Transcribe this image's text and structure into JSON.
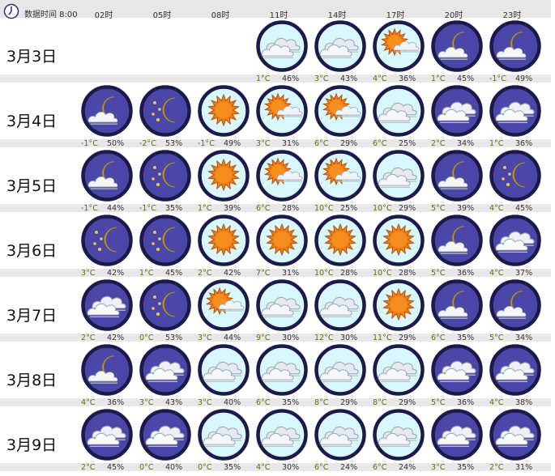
{
  "header": {
    "label": "数据时间 8:00",
    "hours": [
      "02时",
      "05时",
      "08时",
      "11时",
      "14时",
      "17时",
      "20时",
      "23时"
    ]
  },
  "colors": {
    "day_fill": "#d9f7ff",
    "night_fill": "#4a47a8",
    "ring": "#1c1a4a",
    "sun": "#f07d12",
    "moon": "#f1c13c",
    "temp_text": "#6b6b0f",
    "stripe": "#e7e7e7"
  },
  "days": [
    {
      "date": "3月3日",
      "slots": [
        null,
        null,
        null,
        {
          "icon": "cloudy-day",
          "temp": "1°C",
          "hum": "46%"
        },
        {
          "icon": "cloudy-day",
          "temp": "3°C",
          "hum": "43%"
        },
        {
          "icon": "sun-cloud",
          "temp": "4°C",
          "hum": "36%"
        },
        {
          "icon": "moon-cloud",
          "temp": "1°C",
          "hum": "45%"
        },
        {
          "icon": "moon-cloud",
          "temp": "-1°C",
          "hum": "49%"
        }
      ]
    },
    {
      "date": "3月4日",
      "slots": [
        {
          "icon": "moon-cloud",
          "temp": "-1°C",
          "hum": "50%"
        },
        {
          "icon": "moon-stars",
          "temp": "-2°C",
          "hum": "53%"
        },
        {
          "icon": "sun",
          "temp": "-1°C",
          "hum": "49%"
        },
        {
          "icon": "sun-cloud",
          "temp": "3°C",
          "hum": "31%"
        },
        {
          "icon": "sun-cloud",
          "temp": "6°C",
          "hum": "29%"
        },
        {
          "icon": "cloudy-day",
          "temp": "6°C",
          "hum": "25%"
        },
        {
          "icon": "cloudy-night",
          "temp": "2°C",
          "hum": "34%"
        },
        {
          "icon": "cloudy-night",
          "temp": "1°C",
          "hum": "36%"
        }
      ]
    },
    {
      "date": "3月5日",
      "slots": [
        {
          "icon": "moon-cloud",
          "temp": "-1°C",
          "hum": "44%"
        },
        {
          "icon": "moon-stars",
          "temp": "-1°C",
          "hum": "35%"
        },
        {
          "icon": "sun",
          "temp": "1°C",
          "hum": "39%"
        },
        {
          "icon": "sun-cloud",
          "temp": "6°C",
          "hum": "28%"
        },
        {
          "icon": "sun-cloud",
          "temp": "10°C",
          "hum": "25%"
        },
        {
          "icon": "cloudy-day",
          "temp": "10°C",
          "hum": "29%"
        },
        {
          "icon": "moon-cloud",
          "temp": "5°C",
          "hum": "39%"
        },
        {
          "icon": "moon-stars",
          "temp": "4°C",
          "hum": "45%"
        }
      ]
    },
    {
      "date": "3月6日",
      "slots": [
        {
          "icon": "moon-stars",
          "temp": "3°C",
          "hum": "42%"
        },
        {
          "icon": "moon-stars",
          "temp": "1°C",
          "hum": "45%"
        },
        {
          "icon": "sun",
          "temp": "2°C",
          "hum": "42%"
        },
        {
          "icon": "sun",
          "temp": "7°C",
          "hum": "31%"
        },
        {
          "icon": "sun",
          "temp": "10°C",
          "hum": "28%"
        },
        {
          "icon": "sun",
          "temp": "10°C",
          "hum": "28%"
        },
        {
          "icon": "moon-cloud",
          "temp": "5°C",
          "hum": "36%"
        },
        {
          "icon": "cloudy-night",
          "temp": "4°C",
          "hum": "37%"
        }
      ]
    },
    {
      "date": "3月7日",
      "slots": [
        {
          "icon": "cloudy-night",
          "temp": "2°C",
          "hum": "42%"
        },
        {
          "icon": "moon-stars",
          "temp": "0°C",
          "hum": "53%"
        },
        {
          "icon": "sun-cloud",
          "temp": "3°C",
          "hum": "44%"
        },
        {
          "icon": "cloudy-day",
          "temp": "9°C",
          "hum": "30%"
        },
        {
          "icon": "cloudy-day",
          "temp": "12°C",
          "hum": "30%"
        },
        {
          "icon": "sun",
          "temp": "11°C",
          "hum": "29%"
        },
        {
          "icon": "moon-cloud",
          "temp": "6°C",
          "hum": "35%"
        },
        {
          "icon": "moon-cloud",
          "temp": "5°C",
          "hum": "34%"
        }
      ]
    },
    {
      "date": "3月8日",
      "slots": [
        {
          "icon": "moon-cloud",
          "temp": "4°C",
          "hum": "36%"
        },
        {
          "icon": "cloudy-night",
          "temp": "3°C",
          "hum": "43%"
        },
        {
          "icon": "cloudy-day",
          "temp": "3°C",
          "hum": "40%"
        },
        {
          "icon": "cloudy-day",
          "temp": "6°C",
          "hum": "35%"
        },
        {
          "icon": "cloudy-day",
          "temp": "8°C",
          "hum": "29%"
        },
        {
          "icon": "cloudy-day",
          "temp": "8°C",
          "hum": "29%"
        },
        {
          "icon": "cloudy-night",
          "temp": "5°C",
          "hum": "36%"
        },
        {
          "icon": "cloudy-night",
          "temp": "4°C",
          "hum": "38%"
        }
      ]
    },
    {
      "date": "3月9日",
      "slots": [
        {
          "icon": "cloudy-night",
          "temp": "2°C",
          "hum": "45%"
        },
        {
          "icon": "cloudy-night",
          "temp": "0°C",
          "hum": "40%"
        },
        {
          "icon": "cloudy-day",
          "temp": "0°C",
          "hum": "35%"
        },
        {
          "icon": "cloudy-day",
          "temp": "4°C",
          "hum": "30%"
        },
        {
          "icon": "cloudy-day",
          "temp": "6°C",
          "hum": "24%"
        },
        {
          "icon": "cloudy-day",
          "temp": "6°C",
          "hum": "24%"
        },
        {
          "icon": "cloudy-night",
          "temp": "3°C",
          "hum": "35%"
        },
        {
          "icon": "cloudy-night",
          "temp": "2°C",
          "hum": "31%"
        }
      ]
    }
  ]
}
